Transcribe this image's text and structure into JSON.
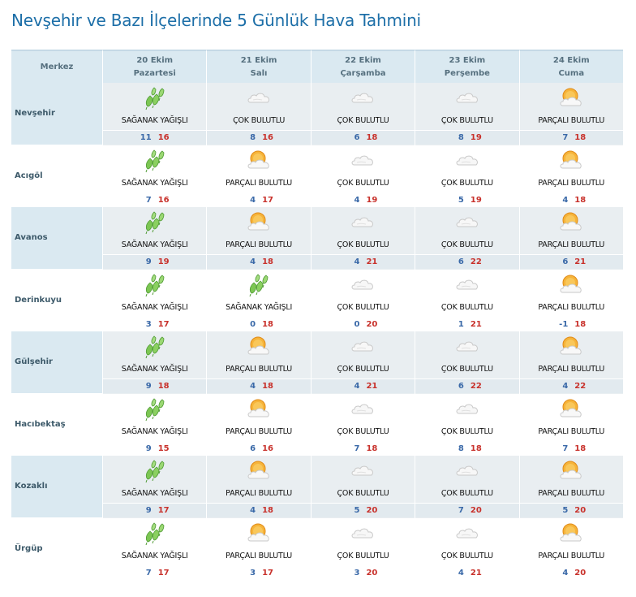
{
  "page": {
    "title": "Nevşehir ve Bazı İlçelerinde 5 Günlük Hava Tahmini"
  },
  "table": {
    "header": {
      "center_label": "Merkez",
      "days": [
        {
          "date": "20 Ekim",
          "weekday": "Pazartesi"
        },
        {
          "date": "21 Ekim",
          "weekday": "Salı"
        },
        {
          "date": "22 Ekim",
          "weekday": "Çarşamba"
        },
        {
          "date": "23 Ekim",
          "weekday": "Perşembe"
        },
        {
          "date": "24 Ekim",
          "weekday": "Cuma"
        }
      ]
    },
    "rows": [
      {
        "name": "Nevşehir",
        "days": [
          {
            "icon": "shower-icon",
            "condition": "SAĞANAK YAĞIŞLI",
            "min": "11",
            "max": "16"
          },
          {
            "icon": "cloud-icon",
            "condition": "ÇOK BULUTLU",
            "min": "8",
            "max": "16"
          },
          {
            "icon": "cloud-icon",
            "condition": "ÇOK BULUTLU",
            "min": "6",
            "max": "18"
          },
          {
            "icon": "cloud-icon",
            "condition": "ÇOK BULUTLU",
            "min": "8",
            "max": "19"
          },
          {
            "icon": "partly-cloudy-icon",
            "condition": "PARÇALI BULUTLU",
            "min": "7",
            "max": "18"
          }
        ]
      },
      {
        "name": "Acıgöl",
        "days": [
          {
            "icon": "shower-icon",
            "condition": "SAĞANAK YAĞIŞLI",
            "min": "7",
            "max": "16"
          },
          {
            "icon": "partly-cloudy-icon",
            "condition": "PARÇALI BULUTLU",
            "min": "4",
            "max": "17"
          },
          {
            "icon": "cloud-icon",
            "condition": "ÇOK BULUTLU",
            "min": "4",
            "max": "19"
          },
          {
            "icon": "cloud-icon",
            "condition": "ÇOK BULUTLU",
            "min": "5",
            "max": "19"
          },
          {
            "icon": "partly-cloudy-icon",
            "condition": "PARÇALI BULUTLU",
            "min": "4",
            "max": "18"
          }
        ]
      },
      {
        "name": "Avanos",
        "days": [
          {
            "icon": "shower-icon",
            "condition": "SAĞANAK YAĞIŞLI",
            "min": "9",
            "max": "19"
          },
          {
            "icon": "partly-cloudy-icon",
            "condition": "PARÇALI BULUTLU",
            "min": "4",
            "max": "18"
          },
          {
            "icon": "cloud-icon",
            "condition": "ÇOK BULUTLU",
            "min": "4",
            "max": "21"
          },
          {
            "icon": "cloud-icon",
            "condition": "ÇOK BULUTLU",
            "min": "6",
            "max": "22"
          },
          {
            "icon": "partly-cloudy-icon",
            "condition": "PARÇALI BULUTLU",
            "min": "6",
            "max": "21"
          }
        ]
      },
      {
        "name": "Derinkuyu",
        "days": [
          {
            "icon": "shower-icon",
            "condition": "SAĞANAK YAĞIŞLI",
            "min": "3",
            "max": "17"
          },
          {
            "icon": "shower-icon",
            "condition": "SAĞANAK YAĞIŞLI",
            "min": "0",
            "max": "18"
          },
          {
            "icon": "cloud-icon",
            "condition": "ÇOK BULUTLU",
            "min": "0",
            "max": "20"
          },
          {
            "icon": "cloud-icon",
            "condition": "ÇOK BULUTLU",
            "min": "1",
            "max": "21"
          },
          {
            "icon": "partly-cloudy-icon",
            "condition": "PARÇALI BULUTLU",
            "min": "-1",
            "max": "18"
          }
        ]
      },
      {
        "name": "Gülşehir",
        "days": [
          {
            "icon": "shower-icon",
            "condition": "SAĞANAK YAĞIŞLI",
            "min": "9",
            "max": "18"
          },
          {
            "icon": "partly-cloudy-icon",
            "condition": "PARÇALI BULUTLU",
            "min": "4",
            "max": "18"
          },
          {
            "icon": "cloud-icon",
            "condition": "ÇOK BULUTLU",
            "min": "4",
            "max": "21"
          },
          {
            "icon": "cloud-icon",
            "condition": "ÇOK BULUTLU",
            "min": "6",
            "max": "22"
          },
          {
            "icon": "partly-cloudy-icon",
            "condition": "PARÇALI BULUTLU",
            "min": "4",
            "max": "22"
          }
        ]
      },
      {
        "name": "Hacıbektaş",
        "days": [
          {
            "icon": "shower-icon",
            "condition": "SAĞANAK YAĞIŞLI",
            "min": "9",
            "max": "15"
          },
          {
            "icon": "partly-cloudy-icon",
            "condition": "PARÇALI BULUTLU",
            "min": "6",
            "max": "16"
          },
          {
            "icon": "cloud-icon",
            "condition": "ÇOK BULUTLU",
            "min": "7",
            "max": "18"
          },
          {
            "icon": "cloud-icon",
            "condition": "ÇOK BULUTLU",
            "min": "8",
            "max": "18"
          },
          {
            "icon": "partly-cloudy-icon",
            "condition": "PARÇALI BULUTLU",
            "min": "7",
            "max": "18"
          }
        ]
      },
      {
        "name": "Kozaklı",
        "days": [
          {
            "icon": "shower-icon",
            "condition": "SAĞANAK YAĞIŞLI",
            "min": "9",
            "max": "17"
          },
          {
            "icon": "partly-cloudy-icon",
            "condition": "PARÇALI BULUTLU",
            "min": "4",
            "max": "18"
          },
          {
            "icon": "cloud-icon",
            "condition": "ÇOK BULUTLU",
            "min": "5",
            "max": "20"
          },
          {
            "icon": "cloud-icon",
            "condition": "ÇOK BULUTLU",
            "min": "7",
            "max": "20"
          },
          {
            "icon": "partly-cloudy-icon",
            "condition": "PARÇALI BULUTLU",
            "min": "5",
            "max": "20"
          }
        ]
      },
      {
        "name": "Ürgüp",
        "days": [
          {
            "icon": "shower-icon",
            "condition": "SAĞANAK YAĞIŞLI",
            "min": "7",
            "max": "17"
          },
          {
            "icon": "partly-cloudy-icon",
            "condition": "PARÇALI BULUTLU",
            "min": "3",
            "max": "17"
          },
          {
            "icon": "cloud-icon",
            "condition": "ÇOK BULUTLU",
            "min": "3",
            "max": "20"
          },
          {
            "icon": "cloud-icon",
            "condition": "ÇOK BULUTLU",
            "min": "4",
            "max": "21"
          },
          {
            "icon": "partly-cloudy-icon",
            "condition": "PARÇALI BULUTLU",
            "min": "4",
            "max": "20"
          }
        ]
      }
    ]
  },
  "colors": {
    "title": "#1d6fa8",
    "header_bg": "#dae9f1",
    "min_temp": "#3a69a8",
    "max_temp": "#c8312b",
    "shower_green": "#6cc04a",
    "sun_orange": "#f3a21f"
  }
}
